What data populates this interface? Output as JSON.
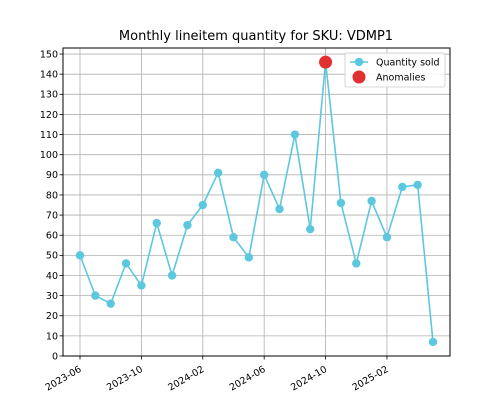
{
  "chart_data": {
    "type": "line",
    "title": "Monthly lineitem quantity for SKU: VDMP1",
    "xlabel": "",
    "ylabel": "",
    "x": [
      "2023-06",
      "2023-07",
      "2023-08",
      "2023-09",
      "2023-10",
      "2023-11",
      "2023-12",
      "2024-01",
      "2024-02",
      "2024-03",
      "2024-04",
      "2024-05",
      "2024-06",
      "2024-07",
      "2024-08",
      "2024-09",
      "2024-10",
      "2024-11",
      "2024-12",
      "2025-01",
      "2025-02",
      "2025-03",
      "2025-04",
      "2025-05"
    ],
    "x_ticks": [
      "2023-06",
      "2023-10",
      "2024-02",
      "2024-06",
      "2024-10",
      "2025-02"
    ],
    "ylim": [
      0,
      153
    ],
    "y_ticks": [
      0,
      10,
      20,
      30,
      40,
      50,
      60,
      70,
      80,
      90,
      100,
      110,
      120,
      130,
      140,
      150
    ],
    "grid": true,
    "legend_position": "top-right",
    "series": [
      {
        "name": "Quantity sold",
        "color": "#5bc8e0",
        "marker": "circle",
        "values": [
          50,
          30,
          26,
          46,
          35,
          66,
          40,
          65,
          75,
          91,
          59,
          49,
          90,
          73,
          110,
          63,
          146,
          76,
          46,
          77,
          59,
          84,
          85,
          7
        ]
      }
    ],
    "anomalies": {
      "name": "Anomalies",
      "color": "#e03030",
      "points": [
        {
          "x": "2024-10",
          "y": 146
        }
      ]
    }
  }
}
